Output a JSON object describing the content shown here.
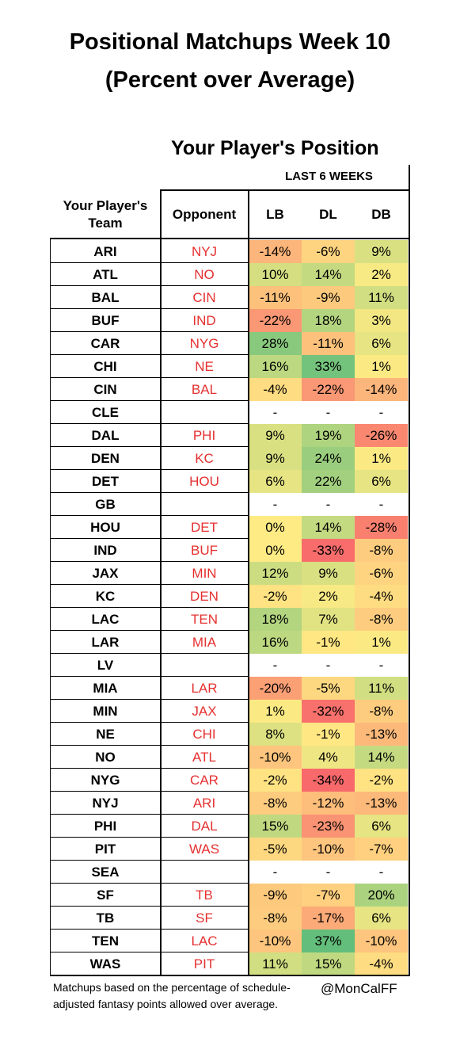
{
  "chart_data": {
    "type": "table",
    "title": "Positional Matchups Week 10",
    "title_line2": "(Percent over Average)",
    "subtitle": "Your Player's Position",
    "span_label": "LAST 6 WEEKS",
    "columns": [
      "Your Player's Team",
      "Opponent",
      "LB",
      "DL",
      "DB"
    ],
    "rows": [
      {
        "team": "ARI",
        "opponent": "NYJ",
        "LB": "-14%",
        "DL": "-6%",
        "DB": "9%"
      },
      {
        "team": "ATL",
        "opponent": "NO",
        "LB": "10%",
        "DL": "14%",
        "DB": "2%"
      },
      {
        "team": "BAL",
        "opponent": "CIN",
        "LB": "-11%",
        "DL": "-9%",
        "DB": "11%"
      },
      {
        "team": "BUF",
        "opponent": "IND",
        "LB": "-22%",
        "DL": "18%",
        "DB": "3%"
      },
      {
        "team": "CAR",
        "opponent": "NYG",
        "LB": "28%",
        "DL": "-11%",
        "DB": "6%"
      },
      {
        "team": "CHI",
        "opponent": "NE",
        "LB": "16%",
        "DL": "33%",
        "DB": "1%"
      },
      {
        "team": "CIN",
        "opponent": "BAL",
        "LB": "-4%",
        "DL": "-22%",
        "DB": "-14%"
      },
      {
        "team": "CLE",
        "opponent": "",
        "LB": "-",
        "DL": "-",
        "DB": "-"
      },
      {
        "team": "DAL",
        "opponent": "PHI",
        "LB": "9%",
        "DL": "19%",
        "DB": "-26%"
      },
      {
        "team": "DEN",
        "opponent": "KC",
        "LB": "9%",
        "DL": "24%",
        "DB": "1%"
      },
      {
        "team": "DET",
        "opponent": "HOU",
        "LB": "6%",
        "DL": "22%",
        "DB": "6%"
      },
      {
        "team": "GB",
        "opponent": "",
        "LB": "-",
        "DL": "-",
        "DB": "-"
      },
      {
        "team": "HOU",
        "opponent": "DET",
        "LB": "0%",
        "DL": "14%",
        "DB": "-28%"
      },
      {
        "team": "IND",
        "opponent": "BUF",
        "LB": "0%",
        "DL": "-33%",
        "DB": "-8%"
      },
      {
        "team": "JAX",
        "opponent": "MIN",
        "LB": "12%",
        "DL": "9%",
        "DB": "-6%"
      },
      {
        "team": "KC",
        "opponent": "DEN",
        "LB": "-2%",
        "DL": "2%",
        "DB": "-4%"
      },
      {
        "team": "LAC",
        "opponent": "TEN",
        "LB": "18%",
        "DL": "7%",
        "DB": "-8%"
      },
      {
        "team": "LAR",
        "opponent": "MIA",
        "LB": "16%",
        "DL": "-1%",
        "DB": "1%"
      },
      {
        "team": "LV",
        "opponent": "",
        "LB": "-",
        "DL": "-",
        "DB": "-"
      },
      {
        "team": "MIA",
        "opponent": "LAR",
        "LB": "-20%",
        "DL": "-5%",
        "DB": "11%"
      },
      {
        "team": "MIN",
        "opponent": "JAX",
        "LB": "1%",
        "DL": "-32%",
        "DB": "-8%"
      },
      {
        "team": "NE",
        "opponent": "CHI",
        "LB": "8%",
        "DL": "-1%",
        "DB": "-13%"
      },
      {
        "team": "NO",
        "opponent": "ATL",
        "LB": "-10%",
        "DL": "4%",
        "DB": "14%"
      },
      {
        "team": "NYG",
        "opponent": "CAR",
        "LB": "-2%",
        "DL": "-34%",
        "DB": "-2%"
      },
      {
        "team": "NYJ",
        "opponent": "ARI",
        "LB": "-8%",
        "DL": "-12%",
        "DB": "-13%"
      },
      {
        "team": "PHI",
        "opponent": "DAL",
        "LB": "15%",
        "DL": "-23%",
        "DB": "6%"
      },
      {
        "team": "PIT",
        "opponent": "WAS",
        "LB": "-5%",
        "DL": "-10%",
        "DB": "-7%"
      },
      {
        "team": "SEA",
        "opponent": "",
        "LB": "-",
        "DL": "-",
        "DB": "-"
      },
      {
        "team": "SF",
        "opponent": "TB",
        "LB": "-9%",
        "DL": "-7%",
        "DB": "20%"
      },
      {
        "team": "TB",
        "opponent": "SF",
        "LB": "-8%",
        "DL": "-17%",
        "DB": "6%"
      },
      {
        "team": "TEN",
        "opponent": "LAC",
        "LB": "-10%",
        "DL": "37%",
        "DB": "-10%"
      },
      {
        "team": "WAS",
        "opponent": "PIT",
        "LB": "11%",
        "DL": "15%",
        "DB": "-4%"
      }
    ],
    "colors": {
      "negative": "#f8696b",
      "neutral": "#ffeb84",
      "positive": "#63be7b",
      "opponent_text": "#e53030"
    }
  },
  "footnote": "Matchups based on the percentage of schedule-adjusted fantasy points allowed over average.",
  "handle": "@MonCalFF"
}
